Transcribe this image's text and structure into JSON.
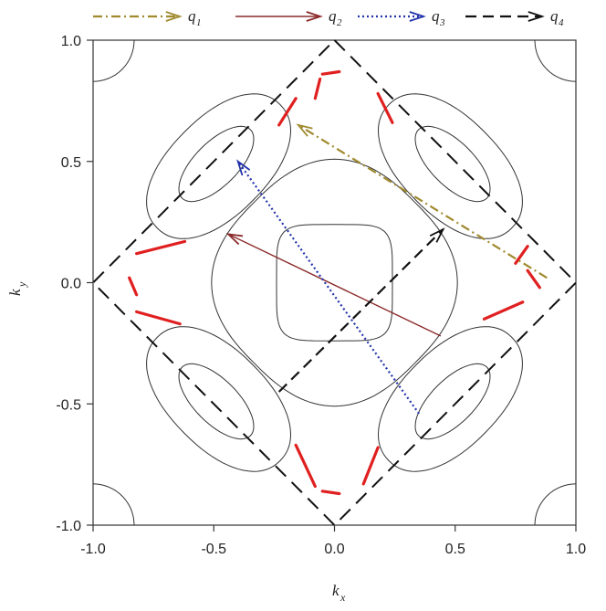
{
  "chart_data": {
    "type": "line",
    "xlim": [
      -1.0,
      1.0
    ],
    "ylim": [
      -1.0,
      1.0
    ],
    "xticks": [
      "-1.0",
      "-0.5",
      "0.0",
      "0.5",
      "1.0"
    ],
    "yticks": [
      "-1.0",
      "-0.5",
      "0.0",
      "0.5",
      "1.0"
    ],
    "xlabel": {
      "main": "k",
      "sub": "x"
    },
    "ylabel": {
      "main": "k",
      "sub": "y"
    },
    "grid": false,
    "legend_position": "top",
    "diamond": [
      [
        0,
        1
      ],
      [
        1,
        0
      ],
      [
        0,
        -1
      ],
      [
        -1,
        0
      ]
    ],
    "inner_contour": {
      "half_width": 0.24
    },
    "vectors": [
      {
        "name": "q",
        "sub": "1",
        "color": "#a08a2e",
        "style": "dashdot",
        "from": [
          0.88,
          0.02
        ],
        "to": [
          -0.15,
          0.65
        ]
      },
      {
        "name": "q",
        "sub": "2",
        "color": "#8b2a2a",
        "style": "solid",
        "from": [
          0.44,
          -0.22
        ],
        "to": [
          -0.44,
          0.2
        ]
      },
      {
        "name": "q",
        "sub": "3",
        "color": "#2233aa",
        "style": "dotted",
        "from": [
          0.35,
          -0.54
        ],
        "to": [
          -0.4,
          0.5
        ]
      },
      {
        "name": "q",
        "sub": "4",
        "color": "#111111",
        "style": "dashed",
        "from": [
          -0.23,
          -0.45
        ],
        "to": [
          0.45,
          0.22
        ]
      }
    ],
    "hotspot_color": "#e02020",
    "hotspot_segments": [
      [
        [
          -0.05,
          0.86
        ],
        [
          0.02,
          0.87
        ]
      ],
      [
        [
          -0.08,
          0.76
        ],
        [
          -0.06,
          0.84
        ]
      ],
      [
        [
          0.18,
          0.78
        ],
        [
          0.24,
          0.66
        ]
      ],
      [
        [
          -0.23,
          0.65
        ],
        [
          -0.16,
          0.76
        ]
      ],
      [
        [
          0.8,
          0.05
        ],
        [
          0.85,
          -0.02
        ]
      ],
      [
        [
          0.62,
          -0.15
        ],
        [
          0.78,
          -0.08
        ]
      ],
      [
        [
          0.75,
          0.08
        ],
        [
          0.8,
          0.15
        ]
      ],
      [
        [
          -0.85,
          0.02
        ],
        [
          -0.82,
          -0.05
        ]
      ],
      [
        [
          -0.82,
          0.12
        ],
        [
          -0.62,
          0.17
        ]
      ],
      [
        [
          -0.82,
          -0.12
        ],
        [
          -0.64,
          -0.17
        ]
      ],
      [
        [
          -0.05,
          -0.86
        ],
        [
          0.02,
          -0.87
        ]
      ],
      [
        [
          -0.16,
          -0.67
        ],
        [
          -0.08,
          -0.84
        ]
      ],
      [
        [
          0.12,
          -0.83
        ],
        [
          0.18,
          -0.68
        ]
      ]
    ]
  }
}
